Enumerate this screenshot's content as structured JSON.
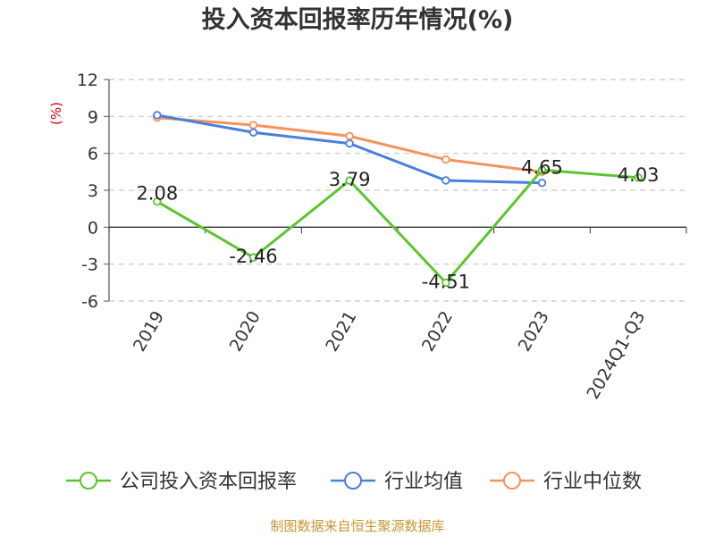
{
  "chart_data": {
    "type": "line",
    "title": "投入资本回报率历年情况(%)",
    "ylabel": "(%)",
    "categories": [
      "2019",
      "2020",
      "2021",
      "2022",
      "2023",
      "2024Q1-Q3"
    ],
    "yticks": [
      12,
      9,
      6,
      3,
      0,
      -3,
      -6
    ],
    "ylim": [
      -6,
      12
    ],
    "grid": true,
    "legend_position": "bottom",
    "series": [
      {
        "name": "公司投入资本回报率",
        "color": "#5cc52d",
        "values": [
          2.08,
          -2.46,
          3.79,
          -4.51,
          4.65,
          4.03
        ],
        "labels": [
          "2.08",
          "-2.46",
          "3.79",
          "-4.51",
          "4.65",
          "4.03"
        ]
      },
      {
        "name": "行业均值",
        "color": "#4a7fdb",
        "values": [
          9.1,
          7.7,
          6.8,
          3.8,
          3.6,
          null
        ]
      },
      {
        "name": "行业中位数",
        "color": "#f5935a",
        "values": [
          8.9,
          8.3,
          7.4,
          5.5,
          4.5,
          null
        ]
      }
    ]
  },
  "source": "制图数据来自恒生聚源数据库"
}
